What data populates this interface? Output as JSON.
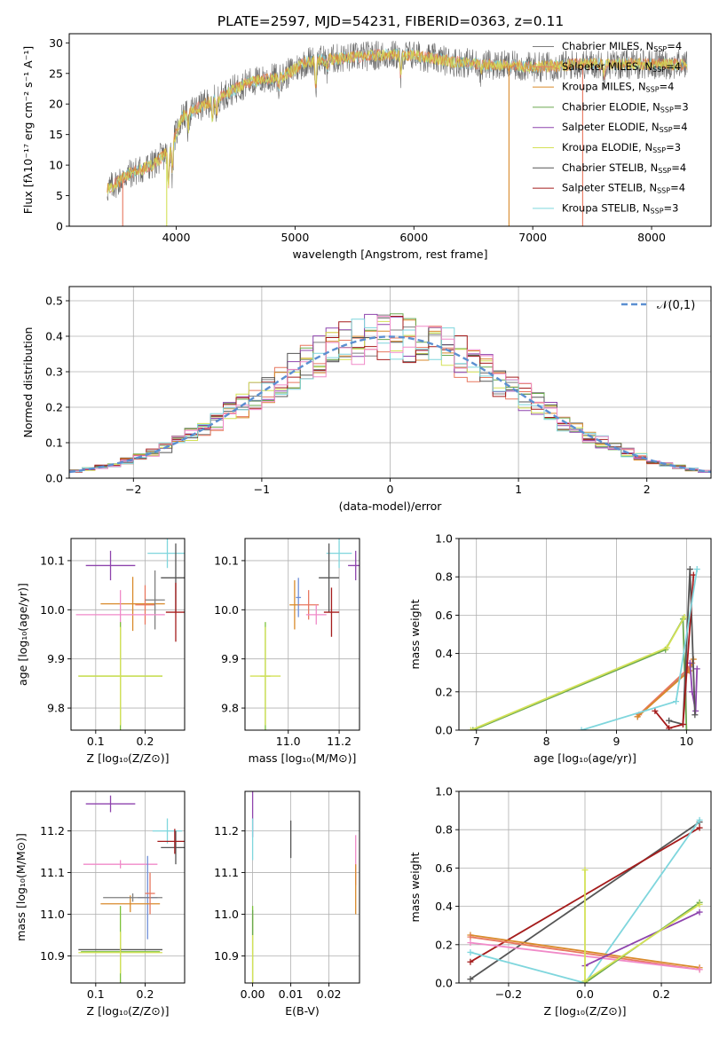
{
  "figure_title": "PLATE=2597, MJD=54231, FIBERID=0363, z=0.11",
  "colors": {
    "Chabrier MILES": "#7f7f7f",
    "Salpeter MILES": "#e8775f",
    "Kroupa MILES": "#d98a2b",
    "Chabrier ELODIE": "#6aa84f",
    "Salpeter ELODIE": "#8e44ad",
    "Kroupa ELODIE": "#d4e157",
    "Chabrier STELIB": "#555555",
    "Salpeter STELIB": "#a51c1c",
    "Kroupa STELIB": "#7fd6dd",
    "pink": "#f08ac8",
    "blue": "#6f8fd8",
    "green": "#7cc23a"
  },
  "chart_data": [
    {
      "id": "spectrum",
      "type": "line",
      "title": "PLATE=2597, MJD=54231, FIBERID=0363, z=0.11",
      "xlabel": "wavelength [Angstrom, rest frame]",
      "ylabel": "Flux [fλ10⁻¹⁷ erg cm⁻² s⁻¹ A⁻¹]",
      "xlim": [
        3100,
        8500
      ],
      "ylim": [
        0,
        31.5
      ],
      "xticks": [
        4000,
        5000,
        6000,
        7000,
        8000
      ],
      "yticks": [
        0,
        5,
        10,
        15,
        20,
        25,
        30
      ],
      "legend_position": "right",
      "continuum": [
        [
          3420,
          6.0
        ],
        [
          3600,
          8.5
        ],
        [
          3800,
          10.0
        ],
        [
          3950,
          12.5
        ],
        [
          4050,
          18.0
        ],
        [
          4300,
          20.5
        ],
        [
          4600,
          23.5
        ],
        [
          4900,
          24.5
        ],
        [
          5100,
          27.0
        ],
        [
          5400,
          27.5
        ],
        [
          5700,
          28.0
        ],
        [
          6000,
          28.0
        ],
        [
          6300,
          27.0
        ],
        [
          6600,
          26.5
        ],
        [
          7000,
          26.0
        ],
        [
          7400,
          26.5
        ],
        [
          7800,
          26.5
        ],
        [
          8200,
          26.5
        ],
        [
          8300,
          26.5
        ]
      ],
      "absorption_lines": [
        [
          3934,
          6
        ],
        [
          3968,
          5
        ],
        [
          4101,
          3
        ],
        [
          4304,
          4
        ],
        [
          4340,
          3
        ],
        [
          4861,
          2
        ],
        [
          5175,
          5
        ],
        [
          5270,
          2
        ],
        [
          5890,
          4
        ],
        [
          6563,
          2
        ],
        [
          7600,
          2
        ]
      ],
      "model_spikes": [
        [
          3550,
          0
        ],
        [
          3920,
          0
        ],
        [
          6800,
          0
        ],
        [
          7420,
          0
        ]
      ],
      "series": [
        {
          "name": "Chabrier MILES, N_SSP=4"
        },
        {
          "name": "Salpeter MILES, N_SSP=4"
        },
        {
          "name": "Kroupa MILES, N_SSP=4"
        },
        {
          "name": "Chabrier ELODIE, N_SSP=3"
        },
        {
          "name": "Salpeter ELODIE, N_SSP=4"
        },
        {
          "name": "Kroupa ELODIE, N_SSP=3"
        },
        {
          "name": "Chabrier STELIB, N_SSP=4"
        },
        {
          "name": "Salpeter STELIB, N_SSP=4"
        },
        {
          "name": "Kroupa STELIB, N_SSP=3"
        }
      ]
    },
    {
      "id": "residuals",
      "type": "histogram",
      "xlabel": "(data-model)/error",
      "ylabel": "Normed distribution",
      "xlim": [
        -2.5,
        2.5
      ],
      "ylim": [
        0,
        0.54
      ],
      "xticks": [
        -2,
        -1,
        0,
        1,
        2
      ],
      "yticks": [
        0.0,
        0.1,
        0.2,
        0.3,
        0.4,
        0.5
      ],
      "bin_edges_start": -2.5,
      "bin_width": 0.1,
      "gaussian_label": "𝒩(0,1)",
      "legend_position": "top-right",
      "series_colors": [
        "#7f7f7f",
        "#e8775f",
        "#d98a2b",
        "#6aa84f",
        "#8e44ad",
        "#d4e157",
        "#555555",
        "#a51c1c",
        "#7fd6dd",
        "#f08ac8"
      ]
    },
    {
      "id": "age_vs_Z",
      "type": "errorbar",
      "xlabel": "Z [log₁₀(Z/Z⊙)]",
      "ylabel": "age  [log₁₀(age/yr)]",
      "xlim": [
        0.05,
        0.28
      ],
      "ylim": [
        9.755,
        10.145
      ],
      "xticks": [
        0.1,
        0.2
      ],
      "yticks": [
        9.8,
        9.9,
        10.0,
        10.1
      ],
      "points": [
        {
          "color": "#8e44ad",
          "x": 0.13,
          "xerr": 0.05,
          "y": 10.09,
          "yerr": 0.03
        },
        {
          "color": "#7fd6dd",
          "x": 0.245,
          "xerr": 0.04,
          "y": 10.115,
          "yerr": 0.03
        },
        {
          "color": "#555555",
          "x": 0.262,
          "xerr": 0.03,
          "y": 10.065,
          "yerr": 0.07
        },
        {
          "color": "#d98a2b",
          "x": 0.175,
          "xerr": 0.065,
          "y": 10.012,
          "yerr": 0.055
        },
        {
          "color": "#e8775f",
          "x": 0.2,
          "xerr": 0.02,
          "y": 10.01,
          "yerr": 0.04
        },
        {
          "color": "#7f7f7f",
          "x": 0.22,
          "xerr": 0.02,
          "y": 10.02,
          "yerr": 0.06
        },
        {
          "color": "#a51c1c",
          "x": 0.262,
          "xerr": 0.02,
          "y": 9.995,
          "yerr": 0.06
        },
        {
          "color": "#f08ac8",
          "x": 0.15,
          "xerr": 0.09,
          "y": 9.99,
          "yerr": 0.05
        },
        {
          "color": "#7cc23a",
          "x": 0.15,
          "xerr": 0.085,
          "y": 9.865,
          "yerr": 0.11
        },
        {
          "color": "#d4e157",
          "x": 0.15,
          "xerr": 0.085,
          "y": 9.865,
          "yerr": 0.1
        }
      ]
    },
    {
      "id": "age_vs_mass",
      "type": "errorbar",
      "xlabel": "mass [log₁₀(M/M⊙)]",
      "ylabel": "",
      "xlim": [
        10.83,
        11.28
      ],
      "ylim": [
        9.755,
        10.145
      ],
      "xticks": [
        11.0,
        11.2
      ],
      "yticks": [
        9.8,
        9.9,
        10.0,
        10.1
      ],
      "points": [
        {
          "color": "#8e44ad",
          "x": 11.265,
          "xerr": 0.03,
          "y": 10.09,
          "yerr": 0.03
        },
        {
          "color": "#7fd6dd",
          "x": 11.2,
          "xerr": 0.05,
          "y": 10.115,
          "yerr": 0.03
        },
        {
          "color": "#555555",
          "x": 11.16,
          "xerr": 0.04,
          "y": 10.065,
          "yerr": 0.07
        },
        {
          "color": "#d98a2b",
          "x": 11.025,
          "xerr": 0.02,
          "y": 10.01,
          "yerr": 0.05
        },
        {
          "color": "#6f8fd8",
          "x": 11.04,
          "xerr": 0.01,
          "y": 10.025,
          "yerr": 0.04
        },
        {
          "color": "#e8775f",
          "x": 11.08,
          "xerr": 0.04,
          "y": 10.01,
          "yerr": 0.03
        },
        {
          "color": "#f08ac8",
          "x": 11.11,
          "xerr": 0.04,
          "y": 9.99,
          "yerr": 0.02
        },
        {
          "color": "#a51c1c",
          "x": 11.17,
          "xerr": 0.03,
          "y": 9.995,
          "yerr": 0.05
        },
        {
          "color": "#7cc23a",
          "x": 10.91,
          "xerr": 0.02,
          "y": 9.865,
          "yerr": 0.11
        },
        {
          "color": "#d4e157",
          "x": 10.91,
          "xerr": 0.06,
          "y": 9.865,
          "yerr": 0.1
        }
      ]
    },
    {
      "id": "massweight_vs_age",
      "type": "line",
      "xlabel": "age  [log₁₀(age/yr)]",
      "ylabel": "mass weight",
      "xlim": [
        6.75,
        10.35
      ],
      "ylim": [
        0,
        1.0
      ],
      "xticks": [
        7,
        8,
        9,
        10
      ],
      "yticks": [
        0.0,
        0.2,
        0.4,
        0.6,
        0.8,
        1.0
      ],
      "series": [
        {
          "color": "#6aa84f",
          "x": [
            6.95,
            9.7,
            9.95,
            10.0
          ],
          "y": [
            0.0,
            0.42,
            0.58,
            0.0
          ]
        },
        {
          "color": "#d4e157",
          "x": [
            6.92,
            9.72,
            9.97
          ],
          "y": [
            0.0,
            0.43,
            0.59
          ]
        },
        {
          "color": "#7f7f7f",
          "x": [
            9.3,
            10.0,
            10.05
          ],
          "y": [
            0.07,
            0.3,
            0.33
          ]
        },
        {
          "color": "#e8775f",
          "x": [
            9.32,
            10.02,
            10.08
          ],
          "y": [
            0.08,
            0.32,
            0.35
          ]
        },
        {
          "color": "#d98a2b",
          "x": [
            9.3,
            10.04,
            10.1
          ],
          "y": [
            0.07,
            0.31,
            0.37
          ]
        },
        {
          "color": "#8e44ad",
          "x": [
            10.05,
            10.08,
            10.13,
            10.15
          ],
          "y": [
            0.35,
            0.2,
            0.1,
            0.32
          ]
        },
        {
          "color": "#555555",
          "x": [
            9.75,
            9.95,
            10.05,
            10.12
          ],
          "y": [
            0.05,
            0.03,
            0.84,
            0.08
          ]
        },
        {
          "color": "#a51c1c",
          "x": [
            9.55,
            9.75,
            9.95,
            10.1
          ],
          "y": [
            0.1,
            0.01,
            0.03,
            0.81
          ]
        },
        {
          "color": "#7fd6dd",
          "x": [
            8.5,
            9.85,
            10.15
          ],
          "y": [
            0.0,
            0.15,
            0.84
          ]
        }
      ]
    },
    {
      "id": "mass_vs_Z",
      "type": "errorbar",
      "xlabel": "Z [log₁₀(Z/Z⊙)]",
      "ylabel": "mass [log₁₀(M/M⊙)]",
      "xlim": [
        0.05,
        0.28
      ],
      "ylim": [
        10.835,
        11.295
      ],
      "xticks": [
        0.1,
        0.2
      ],
      "yticks": [
        10.9,
        11.0,
        11.1,
        11.2
      ],
      "points": [
        {
          "color": "#8e44ad",
          "x": 0.13,
          "xerr": 0.05,
          "y": 11.265,
          "yerr": 0.02
        },
        {
          "color": "#7fd6dd",
          "x": 0.245,
          "xerr": 0.03,
          "y": 11.2,
          "yerr": 0.03
        },
        {
          "color": "#555555",
          "x": 0.262,
          "xerr": 0.03,
          "y": 11.16,
          "yerr": 0.04
        },
        {
          "color": "#a51c1c",
          "x": 0.26,
          "xerr": 0.035,
          "y": 11.175,
          "yerr": 0.03
        },
        {
          "color": "#f08ac8",
          "x": 0.15,
          "xerr": 0.075,
          "y": 11.12,
          "yerr": 0.01
        },
        {
          "color": "#6f8fd8",
          "x": 0.205,
          "xerr": 0.02,
          "y": 11.04,
          "yerr": 0.1
        },
        {
          "color": "#d98a2b",
          "x": 0.17,
          "xerr": 0.06,
          "y": 11.025,
          "yerr": 0.02
        },
        {
          "color": "#7f7f7f",
          "x": 0.175,
          "xerr": 0.06,
          "y": 11.04,
          "yerr": 0.01
        },
        {
          "color": "#e8775f",
          "x": 0.21,
          "xerr": 0.01,
          "y": 11.05,
          "yerr": 0.05
        },
        {
          "color": "#7cc23a",
          "x": 0.15,
          "xerr": 0.08,
          "y": 10.91,
          "yerr": 0.11
        },
        {
          "color": "#555555",
          "x": 0.15,
          "xerr": 0.085,
          "y": 10.915,
          "yerr": 0.005
        },
        {
          "color": "#d4e157",
          "x": 0.15,
          "xerr": 0.085,
          "y": 10.908,
          "yerr": 0.05
        }
      ]
    },
    {
      "id": "mass_vs_ebv",
      "type": "errorbar",
      "xlabel": "E(B-V)",
      "ylabel": "",
      "xlim": [
        -0.002,
        0.028
      ],
      "ylim": [
        10.835,
        11.295
      ],
      "xticks": [
        0.0,
        0.01,
        0.02
      ],
      "yticks": [
        10.9,
        11.0,
        11.1,
        11.2
      ],
      "points": [
        {
          "color": "#8e44ad",
          "x": 0.0,
          "xerr": 0.0,
          "y": 11.245,
          "yerr": 0.06
        },
        {
          "color": "#7fd6dd",
          "x": 0.0,
          "xerr": 0.0,
          "y": 11.18,
          "yerr": 0.05
        },
        {
          "color": "#555555",
          "x": 0.01,
          "xerr": 0.0,
          "y": 11.18,
          "yerr": 0.045
        },
        {
          "color": "#f08ac8",
          "x": 0.027,
          "xerr": 0.0,
          "y": 11.13,
          "yerr": 0.06
        },
        {
          "color": "#d98a2b",
          "x": 0.027,
          "xerr": 0.0,
          "y": 11.06,
          "yerr": 0.06
        },
        {
          "color": "#7cc23a",
          "x": 0.0,
          "xerr": 0.0,
          "y": 10.91,
          "yerr": 0.11
        },
        {
          "color": "#d4e157",
          "x": 0.0,
          "xerr": 0.0,
          "y": 10.9,
          "yerr": 0.1
        },
        {
          "color": "#6aa84f",
          "x": 0.0,
          "xerr": 0.0,
          "y": 10.98,
          "yerr": 0.03
        }
      ]
    },
    {
      "id": "massweight_vs_Z",
      "type": "line",
      "xlabel": "Z [log₁₀(Z/Z⊙)]",
      "ylabel": "mass weight",
      "xlim": [
        -0.33,
        0.33
      ],
      "ylim": [
        0,
        1.0
      ],
      "xticks": [
        -0.2,
        0.0,
        0.2
      ],
      "yticks": [
        0.0,
        0.2,
        0.4,
        0.6,
        0.8,
        1.0
      ],
      "series": [
        {
          "color": "#555555",
          "x": [
            -0.3,
            0.3
          ],
          "y": [
            0.02,
            0.84
          ]
        },
        {
          "color": "#a51c1c",
          "x": [
            -0.3,
            0.3
          ],
          "y": [
            0.11,
            0.81
          ]
        },
        {
          "color": "#7fd6dd",
          "x": [
            -0.3,
            0.0,
            0.3
          ],
          "y": [
            0.16,
            0.0,
            0.85
          ]
        },
        {
          "color": "#d98a2b",
          "x": [
            -0.3,
            0.3
          ],
          "y": [
            0.25,
            0.08
          ]
        },
        {
          "color": "#e8775f",
          "x": [
            -0.3,
            0.3
          ],
          "y": [
            0.24,
            0.07
          ]
        },
        {
          "color": "#f08ac8",
          "x": [
            -0.3,
            0.3
          ],
          "y": [
            0.21,
            0.07
          ]
        },
        {
          "color": "#8e44ad",
          "x": [
            0.0,
            0.3
          ],
          "y": [
            0.09,
            0.37
          ]
        },
        {
          "color": "#6aa84f",
          "x": [
            0.0,
            0.3
          ],
          "y": [
            0.0,
            0.42
          ]
        },
        {
          "color": "#d4e157",
          "x": [
            0.0,
            0.3
          ],
          "y": [
            0.01,
            0.41
          ]
        },
        {
          "color": "#d4e157",
          "x": [
            0.0,
            0.0
          ],
          "y": [
            0.01,
            0.59
          ]
        }
      ]
    }
  ],
  "legend": {
    "items": [
      {
        "label": "Chabrier MILES, N",
        "sub": "SSP",
        "tail": "=4"
      },
      {
        "label": "Salpeter MILES, N",
        "sub": "SSP",
        "tail": "=4"
      },
      {
        "label": "Kroupa MILES, N",
        "sub": "SSP",
        "tail": "=4"
      },
      {
        "label": "Chabrier ELODIE, N",
        "sub": "SSP",
        "tail": "=3"
      },
      {
        "label": "Salpeter ELODIE, N",
        "sub": "SSP",
        "tail": "=4"
      },
      {
        "label": "Kroupa ELODIE, N",
        "sub": "SSP",
        "tail": "=3"
      },
      {
        "label": "Chabrier STELIB, N",
        "sub": "SSP",
        "tail": "=4"
      },
      {
        "label": "Salpeter STELIB, N",
        "sub": "SSP",
        "tail": "=4"
      },
      {
        "label": "Kroupa STELIB, N",
        "sub": "SSP",
        "tail": "=3"
      }
    ]
  }
}
